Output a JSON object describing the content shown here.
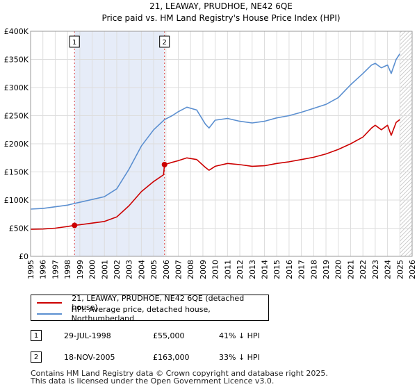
{
  "chart_data": {
    "type": "line",
    "title": "21, LEAWAY, PRUDHOE, NE42 6QE",
    "subtitle": "Price paid vs. HM Land Registry's House Price Index (HPI)",
    "xlim": [
      1995,
      2026
    ],
    "ylim": [
      0,
      400000
    ],
    "x_ticks": [
      "1995",
      "1996",
      "1997",
      "1998",
      "1999",
      "2000",
      "2001",
      "2002",
      "2003",
      "2004",
      "2005",
      "2006",
      "2007",
      "2008",
      "2009",
      "2010",
      "2011",
      "2012",
      "2013",
      "2014",
      "2015",
      "2016",
      "2017",
      "2018",
      "2019",
      "2020",
      "2021",
      "2022",
      "2023",
      "2024",
      "2025",
      "2026"
    ],
    "y_ticks": [
      {
        "value": 0,
        "label": "£0"
      },
      {
        "value": 50000,
        "label": "£50K"
      },
      {
        "value": 100000,
        "label": "£100K"
      },
      {
        "value": 150000,
        "label": "£150K"
      },
      {
        "value": 200000,
        "label": "£200K"
      },
      {
        "value": 250000,
        "label": "£250K"
      },
      {
        "value": 300000,
        "label": "£300K"
      },
      {
        "value": 350000,
        "label": "£350K"
      },
      {
        "value": 400000,
        "label": "£400K"
      }
    ],
    "grid": true,
    "shaded_period": [
      1998.57,
      2005.88
    ],
    "forecast_start": 2025.0,
    "series": [
      {
        "name": "21, LEAWAY, PRUDHOE, NE42 6QE (detached house)",
        "color": "#cc0000",
        "x": [
          1995,
          1996,
          1997,
          1998,
          1998.57,
          1999,
          2000,
          2001,
          2002,
          2003,
          2004,
          2005,
          2005.8,
          2005.88,
          2006.5,
          2007,
          2007.7,
          2008.5,
          2009.2,
          2009.5,
          2010,
          2011,
          2012,
          2013,
          2014,
          2015,
          2016,
          2017,
          2018,
          2019,
          2020,
          2021,
          2022,
          2022.7,
          2023,
          2023.5,
          2024,
          2024.3,
          2024.7,
          2025.0
        ],
        "y": [
          48000,
          48500,
          50000,
          53000,
          55000,
          56000,
          59000,
          62000,
          70000,
          90000,
          115000,
          133000,
          145000,
          163000,
          167000,
          170000,
          175000,
          172000,
          158000,
          153000,
          160000,
          165000,
          163000,
          160000,
          161000,
          165000,
          168000,
          172000,
          176000,
          182000,
          190000,
          200000,
          212000,
          228000,
          233000,
          225000,
          233000,
          215000,
          238000,
          243000
        ]
      },
      {
        "name": "HPI: Average price, detached house, Northumberland",
        "color": "#5b8fd0",
        "x": [
          1995,
          1996,
          1997,
          1998,
          1998.57,
          1999,
          2000,
          2001,
          2002,
          2003,
          2004,
          2005,
          2005.88,
          2006.5,
          2007,
          2007.7,
          2008.5,
          2009.2,
          2009.5,
          2010,
          2011,
          2012,
          2013,
          2014,
          2015,
          2016,
          2017,
          2018,
          2019,
          2020,
          2021,
          2022,
          2022.7,
          2023,
          2023.5,
          2024,
          2024.3,
          2024.7,
          2025.0
        ],
        "y": [
          84000,
          85000,
          88000,
          91000,
          94000,
          96000,
          101000,
          106000,
          120000,
          155000,
          196000,
          225000,
          243000,
          250000,
          257000,
          265000,
          260000,
          235000,
          228000,
          242000,
          245000,
          240000,
          237000,
          240000,
          246000,
          250000,
          256000,
          263000,
          270000,
          282000,
          305000,
          325000,
          340000,
          343000,
          335000,
          340000,
          325000,
          350000,
          360000
        ]
      }
    ],
    "annotations": [
      {
        "label": "1",
        "x": 1998.57,
        "y": 55000
      },
      {
        "label": "2",
        "x": 2005.88,
        "y": 163000
      }
    ]
  },
  "legend": {
    "price_label": "21, LEAWAY, PRUDHOE, NE42 6QE (detached house)",
    "hpi_label": "HPI: Average price, detached house, Northumberland"
  },
  "transactions": [
    {
      "id": "1",
      "date": "29-JUL-1998",
      "price": "£55,000",
      "hpi_diff": "41% ↓ HPI"
    },
    {
      "id": "2",
      "date": "18-NOV-2005",
      "price": "£163,000",
      "hpi_diff": "33% ↓ HPI"
    }
  ],
  "footer": {
    "line1": "Contains HM Land Registry data © Crown copyright and database right 2025.",
    "line2": "This data is licensed under the Open Government Licence v3.0."
  }
}
